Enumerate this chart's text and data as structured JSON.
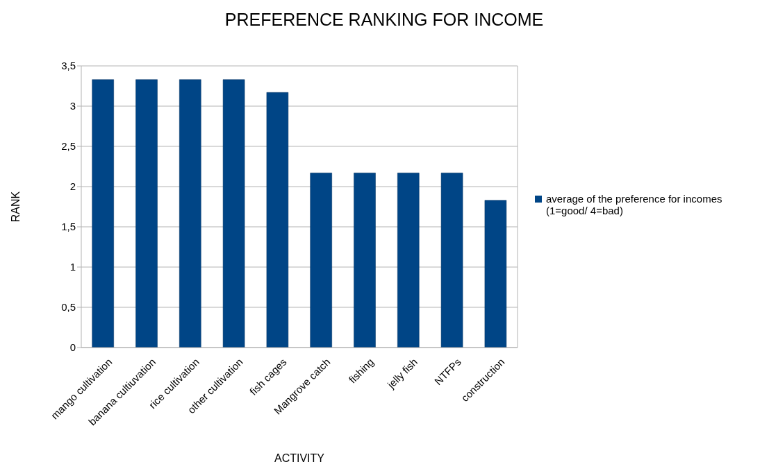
{
  "chart_data": {
    "type": "bar",
    "title": "PREFERENCE RANKING FOR INCOME",
    "xlabel": "ACTIVITY",
    "ylabel": "RANK",
    "categories": [
      "mango cultivation",
      "banana cultiuvation",
      "rice cultivation",
      "other cultivation",
      "fish cages",
      "Mangrove catch",
      "fishing",
      "jelly fish",
      "NTFPs",
      "construction"
    ],
    "series": [
      {
        "name": "average of the preference for incomes (1=good/ 4=bad)",
        "color": "#004586",
        "values": [
          3.33,
          3.33,
          3.33,
          3.33,
          3.17,
          2.17,
          2.17,
          2.17,
          2.17,
          1.83
        ]
      }
    ],
    "ylim": [
      0,
      3.5
    ],
    "yticks": [
      0,
      {
        "value": 0.5,
        "label": "0,5"
      },
      1,
      {
        "value": 1.5,
        "label": "1,5"
      },
      2,
      {
        "value": 2.5,
        "label": "2,5"
      },
      3,
      {
        "value": 3.5,
        "label": "3,5"
      }
    ],
    "grid": "y",
    "legend": "right"
  }
}
